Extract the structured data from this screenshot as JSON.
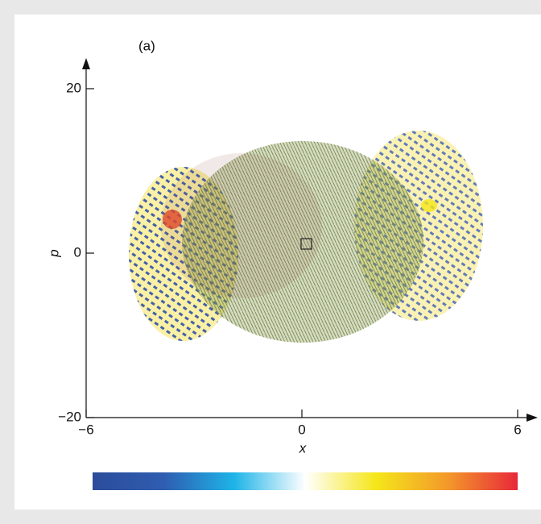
{
  "chart_data": {
    "type": "density",
    "panel_label": "(a)",
    "x_label": "x",
    "y_label": "p",
    "xlim": [
      -6,
      6
    ],
    "xticks": [
      {
        "value": -6,
        "label": "−6"
      },
      0,
      6
    ],
    "ylim": [
      -20,
      20
    ],
    "yticks": [
      {
        "value": -20,
        "label": "−20"
      },
      0,
      20
    ],
    "colormap": [
      "#2b4c9b",
      "#2f5db0",
      "#1eb4e8",
      "#ffffff",
      "#f5e61a",
      "#f39a2a",
      "#e8283a"
    ]
  }
}
